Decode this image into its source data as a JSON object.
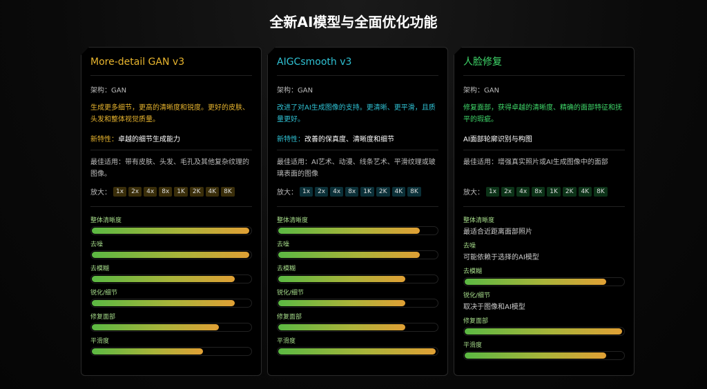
{
  "page_title": "全新AI模型与全面优化功能",
  "cards": [
    {
      "name": "More-detail GAN v3",
      "accent": "#e8b52e",
      "chip_bg": "#3a2e0a",
      "arch": "架构：GAN",
      "desc": "生成更多细节，更高的清晰度和锐度。更好的皮肤、头发和整体视觉质量。",
      "feature_label": "新特性：",
      "feature": "卓越的细节生成能力",
      "best": "最佳适用：带有皮肤、头发、毛孔及其他复杂纹理的图像。",
      "zoom_label": "放大：",
      "zoom_options": [
        "1x",
        "2x",
        "4x",
        "8x",
        "1K",
        "2K",
        "4K",
        "8K"
      ],
      "metrics": [
        {
          "label": "整体清晰度",
          "percent": 99
        },
        {
          "label": "去噪",
          "percent": 99
        },
        {
          "label": "去模糊",
          "percent": 90
        },
        {
          "label": "锐化/细节",
          "percent": 90
        },
        {
          "label": "修复面部",
          "percent": 80
        },
        {
          "label": "平滑度",
          "percent": 70
        }
      ]
    },
    {
      "name": "AIGCsmooth v3",
      "accent": "#2fc1d3",
      "chip_bg": "#0b3038",
      "arch": "架构：GAN",
      "desc": "改进了对AI生成图像的支持。更清晰、更平滑，且质量更好。",
      "feature_label": "新特性：",
      "feature": "改善的保真度、清晰度和细节",
      "best": "最佳适用：AI艺术、动漫、线条艺术、平滑纹理或玻璃表面的图像",
      "zoom_label": "放大：",
      "zoom_options": [
        "1x",
        "2x",
        "4x",
        "8x",
        "1K",
        "2K",
        "4K",
        "8K"
      ],
      "metrics": [
        {
          "label": "整体清晰度",
          "percent": 89
        },
        {
          "label": "去噪",
          "percent": 89
        },
        {
          "label": "去模糊",
          "percent": 80
        },
        {
          "label": "锐化/细节",
          "percent": 80
        },
        {
          "label": "修复面部",
          "percent": 80
        },
        {
          "label": "平滑度",
          "percent": 99
        }
      ]
    },
    {
      "name": "人脸修复",
      "accent": "#3fd86a",
      "chip_bg": "#0c3318",
      "arch": "架构：GAN",
      "desc": "修复面部，获得卓越的清晰度、精确的面部特征和抚平的瑕疵。",
      "feature_label": "",
      "feature": "AI面部轮廓识别与构图",
      "best": "最佳适用：增强真实照片或AI生成图像中的面部",
      "zoom_label": "放大：",
      "zoom_options": [
        "1x",
        "2x",
        "4x",
        "8x",
        "1K",
        "2K",
        "4K",
        "8K"
      ],
      "metrics": [
        {
          "label": "整体清晰度",
          "note": "最适合近距离面部照片"
        },
        {
          "label": "去噪",
          "note": "可能依赖于选择的AI模型"
        },
        {
          "label": "去模糊",
          "percent": 89
        },
        {
          "label": "锐化/细节",
          "note": "取决于图像和AI模型"
        },
        {
          "label": "修复面部",
          "percent": 99
        },
        {
          "label": "平滑度",
          "percent": 89
        }
      ]
    }
  ]
}
